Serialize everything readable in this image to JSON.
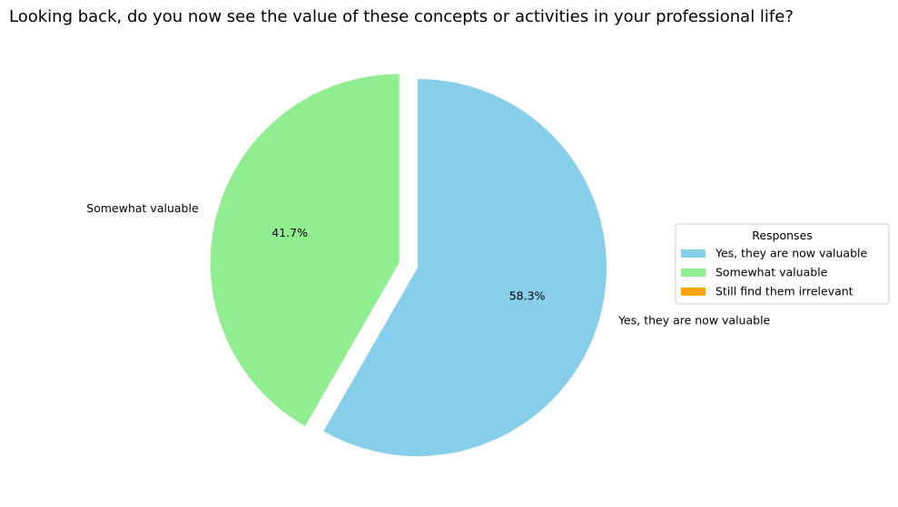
{
  "chart_data": {
    "type": "pie",
    "title": "Looking back, do you now see the value of these concepts or activities in your professional life?",
    "categories": [
      "Yes, they are now valuable",
      "Somewhat valuable",
      "Still find them irrelevant"
    ],
    "values": [
      58.3,
      41.7,
      0
    ],
    "percent_labels": [
      "58.3%",
      "41.7%",
      ""
    ],
    "colors": [
      "#87ceeb",
      "#90ee90",
      "#ffa500"
    ],
    "exploded": [
      false,
      true,
      false
    ],
    "start_angle_deg": 90,
    "direction": "clockwise",
    "legend": {
      "title": "Responses",
      "placement": "center-right",
      "entries": [
        "Yes, they are now valuable",
        "Somewhat valuable",
        "Still find them irrelevant"
      ]
    }
  }
}
